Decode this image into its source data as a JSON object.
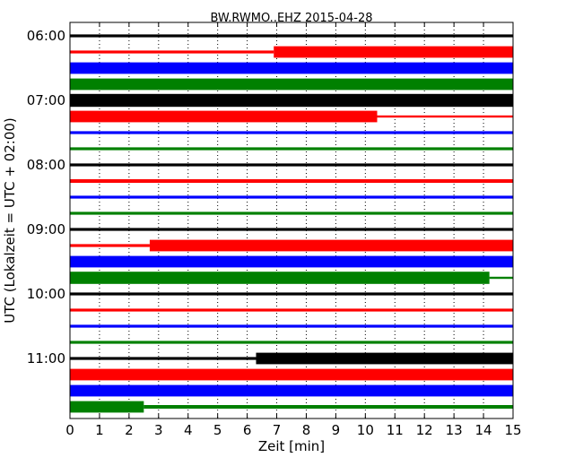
{
  "chart_data": {
    "type": "line",
    "title": "BW.RWMO..EHZ 2015-04-28",
    "xlabel": "Zeit  [min]",
    "ylabel": "UTC (Lokalzeit = UTC + 02:00)",
    "xlim": [
      0,
      15
    ],
    "x_ticks": [
      "0",
      "1",
      "2",
      "3",
      "4",
      "5",
      "6",
      "7",
      "8",
      "9",
      "10",
      "11",
      "12",
      "13",
      "14",
      "15"
    ],
    "y_ticks": [
      "06:00",
      "07:00",
      "08:00",
      "09:00",
      "10:00",
      "11:00"
    ],
    "start_time": "06:00",
    "trace_interval_minutes": 15,
    "trace_duration_minutes": 15,
    "grid": true,
    "color_cycle": [
      "#000000",
      "#ff0000",
      "#0000ff",
      "#008000"
    ],
    "series": [
      {
        "start": "06:00",
        "color": "#000000",
        "segments": [
          [
            0,
            15,
            0.2
          ]
        ]
      },
      {
        "start": "06:15",
        "color": "#ff0000",
        "segments": [
          [
            0,
            6.9,
            0.2
          ],
          [
            6.9,
            15,
            0.8
          ]
        ]
      },
      {
        "start": "06:30",
        "color": "#0000ff",
        "segments": [
          [
            0,
            15,
            0.8
          ]
        ]
      },
      {
        "start": "06:45",
        "color": "#008000",
        "segments": [
          [
            0,
            15,
            0.8
          ]
        ]
      },
      {
        "start": "07:00",
        "color": "#000000",
        "segments": [
          [
            0,
            15,
            0.9
          ]
        ]
      },
      {
        "start": "07:15",
        "color": "#ff0000",
        "segments": [
          [
            0,
            10.4,
            0.8
          ],
          [
            10.4,
            15,
            0.15
          ]
        ]
      },
      {
        "start": "07:30",
        "color": "#0000ff",
        "segments": [
          [
            0,
            15,
            0.2
          ]
        ]
      },
      {
        "start": "07:45",
        "color": "#008000",
        "segments": [
          [
            0,
            15,
            0.2
          ]
        ]
      },
      {
        "start": "08:00",
        "color": "#000000",
        "segments": [
          [
            0,
            15,
            0.2
          ]
        ]
      },
      {
        "start": "08:15",
        "color": "#ff0000",
        "segments": [
          [
            0,
            15,
            0.25
          ]
        ]
      },
      {
        "start": "08:30",
        "color": "#0000ff",
        "segments": [
          [
            0,
            15,
            0.2
          ]
        ]
      },
      {
        "start": "08:45",
        "color": "#008000",
        "segments": [
          [
            0,
            15,
            0.2
          ]
        ]
      },
      {
        "start": "09:00",
        "color": "#000000",
        "segments": [
          [
            0,
            15,
            0.2
          ]
        ]
      },
      {
        "start": "09:15",
        "color": "#ff0000",
        "segments": [
          [
            0,
            2.7,
            0.2
          ],
          [
            2.7,
            15,
            0.8
          ]
        ]
      },
      {
        "start": "09:30",
        "color": "#0000ff",
        "segments": [
          [
            0,
            15,
            0.8
          ]
        ]
      },
      {
        "start": "09:45",
        "color": "#008000",
        "segments": [
          [
            0,
            14.2,
            0.85
          ],
          [
            14.2,
            15,
            0.15
          ]
        ]
      },
      {
        "start": "10:00",
        "color": "#000000",
        "segments": [
          [
            0,
            15,
            0.2
          ]
        ]
      },
      {
        "start": "10:15",
        "color": "#ff0000",
        "segments": [
          [
            0,
            15,
            0.2
          ]
        ]
      },
      {
        "start": "10:30",
        "color": "#0000ff",
        "segments": [
          [
            0,
            15,
            0.2
          ]
        ]
      },
      {
        "start": "10:45",
        "color": "#008000",
        "segments": [
          [
            0,
            15,
            0.2
          ]
        ]
      },
      {
        "start": "11:00",
        "color": "#000000",
        "segments": [
          [
            0,
            6.3,
            0.2
          ],
          [
            6.3,
            15,
            0.8
          ]
        ]
      },
      {
        "start": "11:15",
        "color": "#ff0000",
        "segments": [
          [
            0,
            15,
            0.8
          ]
        ]
      },
      {
        "start": "11:30",
        "color": "#0000ff",
        "segments": [
          [
            0,
            15,
            0.8
          ]
        ]
      },
      {
        "start": "11:45",
        "color": "#008000",
        "segments": [
          [
            0,
            2.5,
            0.8
          ],
          [
            2.5,
            15,
            0.25
          ]
        ]
      }
    ]
  }
}
